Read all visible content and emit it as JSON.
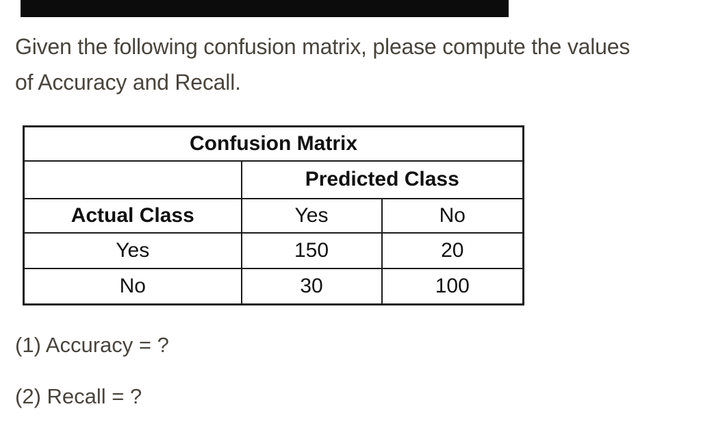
{
  "question": {
    "lines": [
      "Given the following confusion matrix, please compute the values",
      "of Accuracy and Recall."
    ]
  },
  "table": {
    "title": "Confusion Matrix",
    "col_group_header": "Predicted Class",
    "row_group_header": "Actual Class",
    "col_headers": [
      "Yes",
      "No"
    ],
    "rows": [
      {
        "label": "Yes",
        "values": [
          "150",
          "20"
        ]
      },
      {
        "label": "No",
        "values": [
          "30",
          "100"
        ]
      }
    ]
  },
  "prompts": [
    "(1) Accuracy = ?",
    "(2) Recall = ?"
  ],
  "colors": {
    "background": "#ffffff",
    "body_text": "#49443d",
    "table_text": "#111111",
    "table_border": "#1a1a1a",
    "top_bar": "#0c0c0c"
  }
}
